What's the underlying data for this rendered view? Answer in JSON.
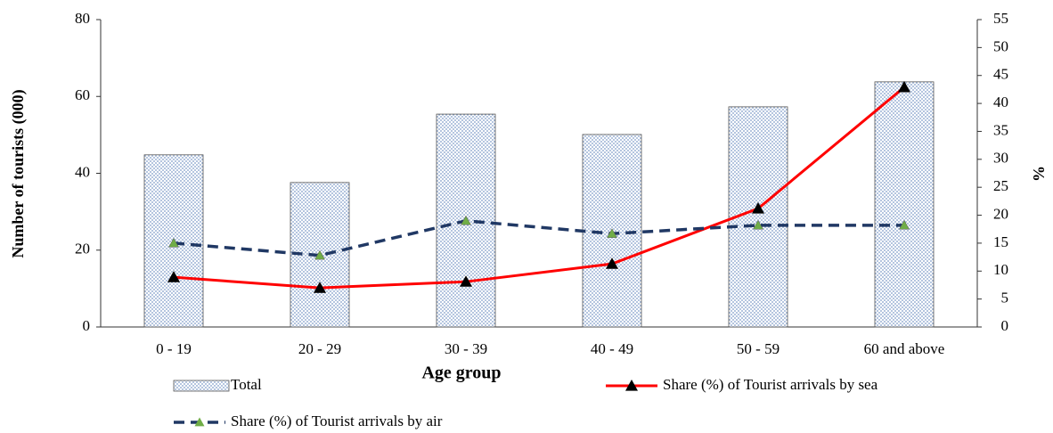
{
  "chart_data": {
    "type": "bar",
    "xlabel": "Age group",
    "ylabel": "Number of tourists (000)",
    "y2label": "%",
    "categories": [
      "0 - 19",
      "20 - 29",
      "30 - 39",
      "40 - 49",
      "50 - 59",
      "60 and above"
    ],
    "series": [
      {
        "name": "Total",
        "type": "bar",
        "axis": "y",
        "color": "#9bb3d9",
        "values": [
          44.8,
          37.6,
          55.4,
          50.1,
          57.3,
          63.8
        ]
      },
      {
        "name": "Share (%) of Tourist arrivals by sea",
        "type": "line",
        "axis": "y2",
        "color": "#ff0000",
        "marker_color": "#000000",
        "values": [
          8.9,
          7.0,
          8.1,
          11.3,
          21.2,
          42.9
        ]
      },
      {
        "name": "Share (%) of Tourist arrivals by air",
        "type": "line",
        "axis": "y2",
        "color": "#203864",
        "marker_color": "#70ad47",
        "dashed": true,
        "values": [
          15.0,
          12.8,
          19.0,
          16.7,
          18.2,
          18.2
        ]
      }
    ],
    "ylim": [
      0,
      80
    ],
    "yticks": [
      0,
      20,
      40,
      60,
      80
    ],
    "y2lim": [
      0,
      55
    ],
    "y2ticks": [
      0,
      5,
      10,
      15,
      20,
      25,
      30,
      35,
      40,
      45,
      50,
      55
    ],
    "grid": false
  }
}
